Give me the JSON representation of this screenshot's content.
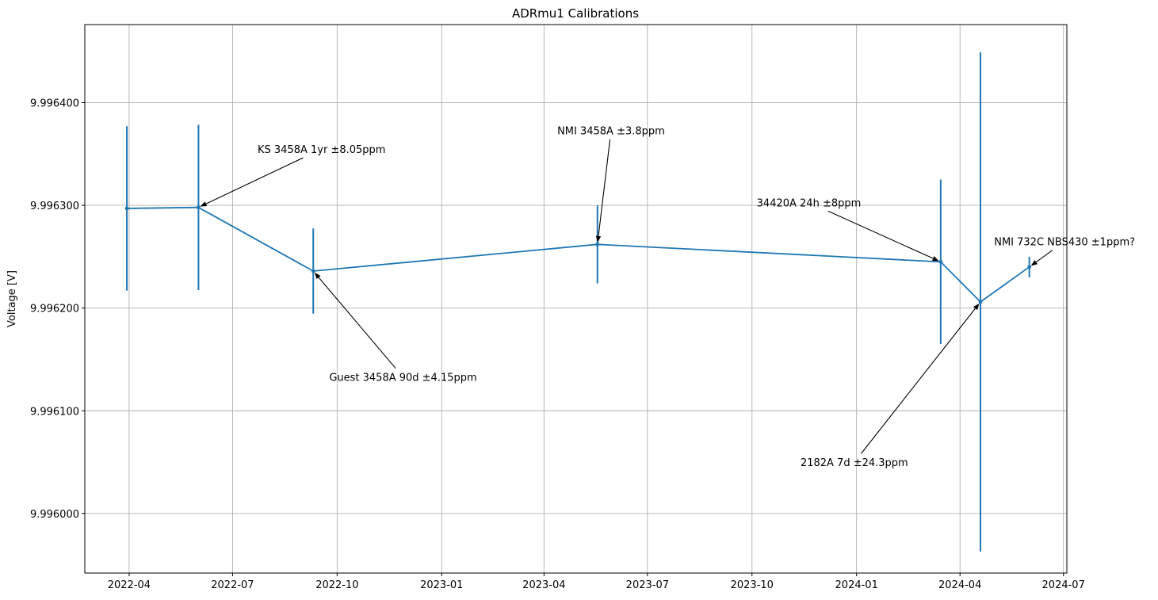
{
  "chart_data": {
    "type": "line",
    "title": "ADRmu1 Calibrations",
    "xlabel": "",
    "ylabel": "Voltage [V]",
    "grid": true,
    "x_axis_type": "date",
    "xlim": [
      "2022-02-21",
      "2024-07-04"
    ],
    "ylim": [
      9.995942,
      9.996476
    ],
    "x_ticks": [
      "2022-04-01",
      "2022-07-01",
      "2022-10-01",
      "2023-01-01",
      "2023-04-01",
      "2023-07-01",
      "2023-10-01",
      "2024-01-01",
      "2024-04-01",
      "2024-07-01"
    ],
    "x_tick_labels": [
      "2022-04",
      "2022-07",
      "2022-10",
      "2023-01",
      "2023-04",
      "2023-07",
      "2023-10",
      "2024-01",
      "2024-04",
      "2024-07"
    ],
    "y_ticks": [
      9.996,
      9.9961,
      9.9962,
      9.9963,
      9.9964
    ],
    "y_tick_labels": [
      "9.996000",
      "9.996100",
      "9.996200",
      "9.996300",
      "9.996400"
    ],
    "series": [
      {
        "color": "#1f77b4",
        "points": [
          {
            "date": "2022-03-30",
            "value": 9.996297,
            "err": 8e-05
          },
          {
            "date": "2022-06-01",
            "value": 9.996298,
            "err": 8.05e-05
          },
          {
            "date": "2022-09-10",
            "value": 9.996236,
            "err": 4.15e-05
          },
          {
            "date": "2023-05-18",
            "value": 9.996262,
            "err": 3.8e-05
          },
          {
            "date": "2024-03-15",
            "value": 9.996245,
            "err": 8e-05
          },
          {
            "date": "2024-04-19",
            "value": 9.996206,
            "err": 0.000243
          },
          {
            "date": "2024-06-01",
            "value": 9.99624,
            "err": 1e-05
          }
        ]
      }
    ],
    "annotations": [
      {
        "text": "KS 3458A 1yr ±8.05ppm",
        "point_index": 1,
        "text_date": "2022-07-23",
        "text_value": 9.996351,
        "align": "start"
      },
      {
        "text": "Guest 3458A 90d ±4.15ppm",
        "point_index": 2,
        "text_date": "2022-09-24",
        "text_value": 9.996129,
        "align": "start"
      },
      {
        "text": "NMI 3458A ±3.8ppm",
        "point_index": 3,
        "text_date": "2023-05-30",
        "text_value": 9.996369,
        "align": "middle"
      },
      {
        "text": "34420A 24h ±8ppm",
        "point_index": 4,
        "text_date": "2023-11-20",
        "text_value": 9.996299,
        "align": "middle"
      },
      {
        "text": "2182A 7d ±24.3ppm",
        "point_index": 5,
        "text_date": "2023-12-30",
        "text_value": 9.996046,
        "align": "middle"
      },
      {
        "text": "NMI 732C NBS430 ±1ppm?",
        "point_index": 6,
        "text_date": "2024-07-02",
        "text_value": 9.996261,
        "align": "middle"
      }
    ]
  }
}
